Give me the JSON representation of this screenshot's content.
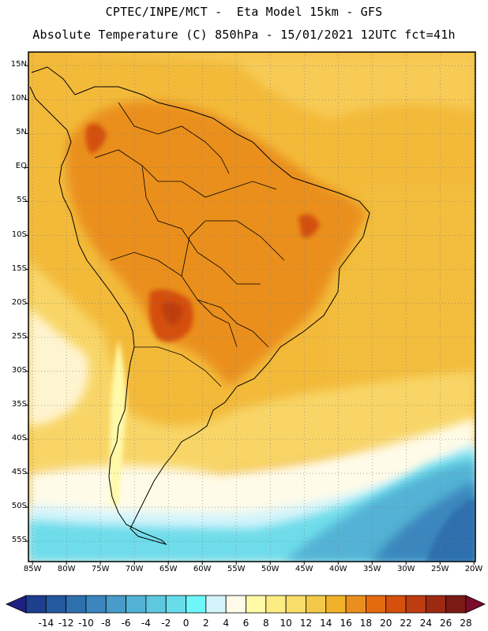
{
  "header": {
    "line1": "CPTEC/INPE/MCT -  Eta Model 15km - GFS",
    "line2": "Absolute Temperature (C) 850hPa - 15/01/2021 12UTC fct=41h"
  },
  "map": {
    "lat_labels": [
      "15N",
      "10N",
      "5N",
      "EQ",
      "5S",
      "10S",
      "15S",
      "20S",
      "25S",
      "30S",
      "35S",
      "40S",
      "45S",
      "50S",
      "55S"
    ],
    "lat_values": [
      15,
      10,
      5,
      0,
      -5,
      -10,
      -15,
      -20,
      -25,
      -30,
      -35,
      -40,
      -45,
      -50,
      -55
    ],
    "lon_labels": [
      "85W",
      "80W",
      "75W",
      "70W",
      "65W",
      "60W",
      "55W",
      "50W",
      "45W",
      "40W",
      "35W",
      "30W",
      "25W",
      "20W"
    ],
    "lon_values": [
      -85,
      -80,
      -75,
      -70,
      -65,
      -60,
      -55,
      -50,
      -45,
      -40,
      -35,
      -30,
      -25,
      -20
    ],
    "lat_range": [
      -58,
      17
    ],
    "lon_range": [
      -85.6,
      -19.8
    ]
  },
  "colorbar": {
    "labels": [
      "-14",
      "-12",
      "-10",
      "-8",
      "-6",
      "-4",
      "-2",
      "0",
      "2",
      "4",
      "6",
      "8",
      "10",
      "12",
      "14",
      "16",
      "18",
      "20",
      "22",
      "24",
      "26",
      "28"
    ],
    "colors": [
      "#1e3f8e",
      "#24589f",
      "#2e6fae",
      "#3a86bd",
      "#479cc9",
      "#52b2d5",
      "#5dc8e0",
      "#68dcea",
      "#6ef6f8",
      "#d4f4fb",
      "#fffbe8",
      "#fffaa8",
      "#fdec84",
      "#f9dd6a",
      "#f4c949",
      "#f1b229",
      "#ea8f1f",
      "#e46a0f",
      "#d4500c",
      "#bd3c10",
      "#9c2a12",
      "#7a1a14"
    ],
    "under_color": "#202080",
    "over_color": "#7a0d2a"
  }
}
